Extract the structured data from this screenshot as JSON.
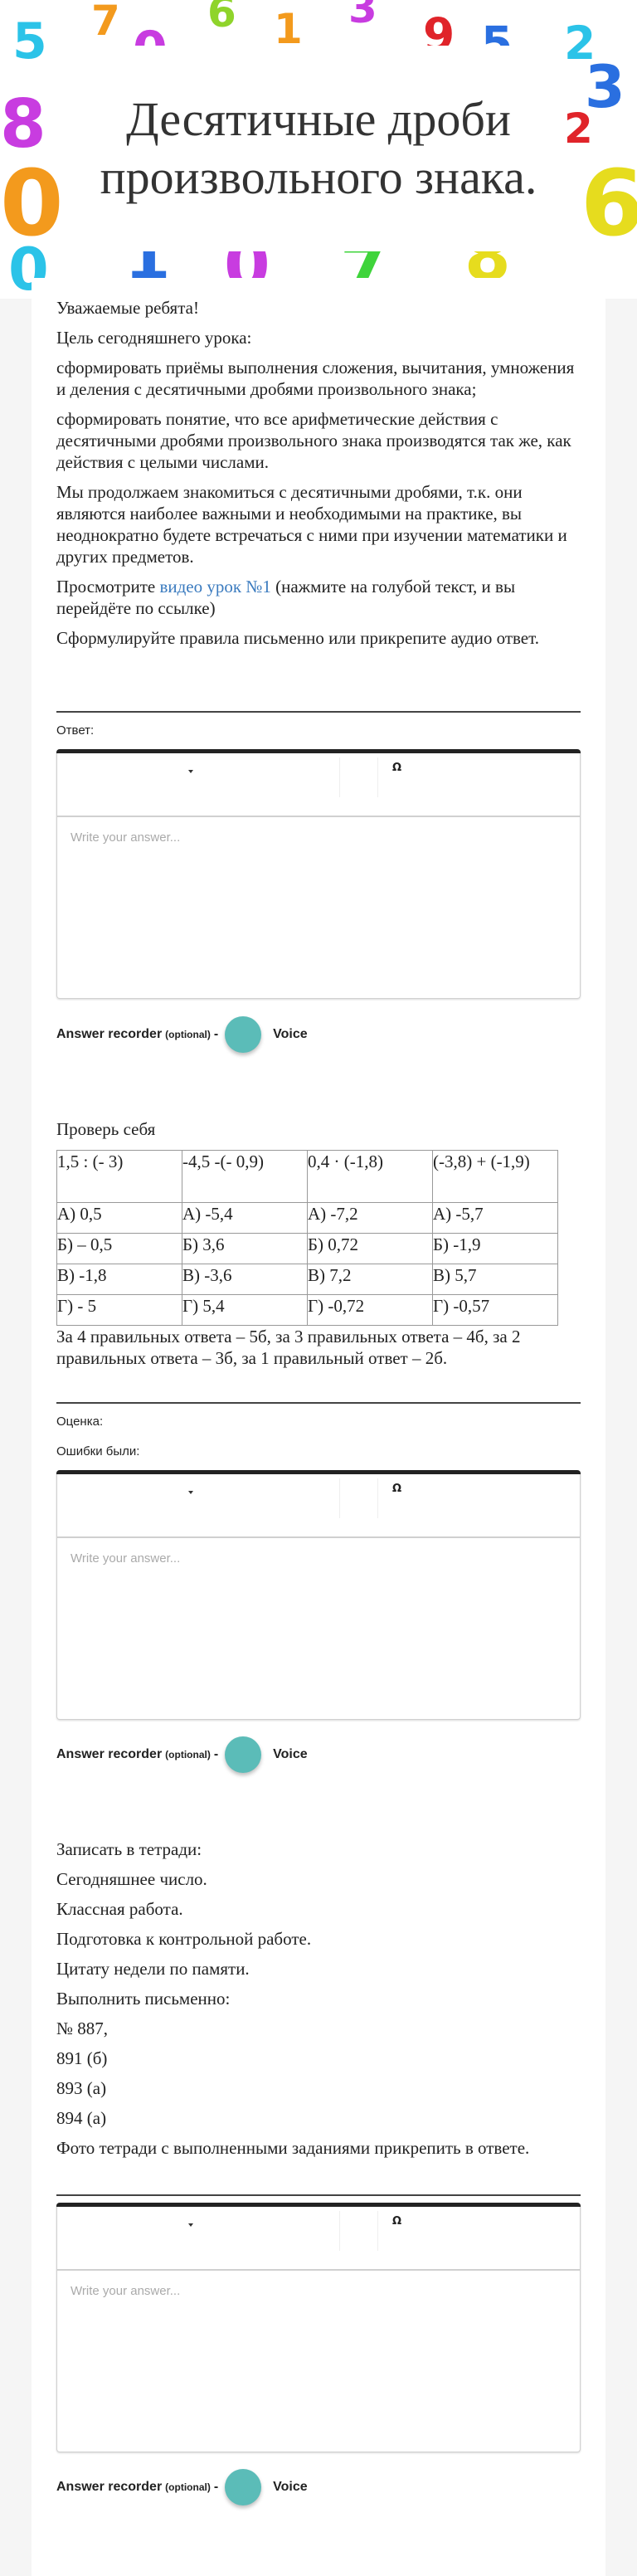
{
  "header": {
    "title": "Десятичные дроби произвольного знака."
  },
  "intro": {
    "paragraphs": [
      "Уважаемые ребята!",
      "Цель сегодняшнего урока:",
      "сформировать приёмы выполнения сложения, вычитания, умножения и деления с десятичными дробями произвольного знака;",
      "сформировать понятие, что все арифметические действия с десятичными дробями произвольного знака производятся так же, как действия с целыми числами.",
      "Мы продолжаем знакомиться с десятичными дробями, т.к. они являются наиболее важными и необходимыми на практике, вы неоднократно будете встречаться с ними при изучении математики и других предметов."
    ],
    "video_prefix": "Просмотрите ",
    "video_link": "видео урок №1",
    "video_suffix": " (нажмите на голубой текст, и вы перейдёте по ссылке)",
    "task": "Сформулируйте  правила письменно или прикрепите аудио ответ."
  },
  "q1": {
    "label": "Ответ:"
  },
  "editor": {
    "placeholder": "Write your answer...",
    "special_char": "Ω"
  },
  "recorder": {
    "label": "Answer recorder",
    "optional": "(optional)",
    "dash": "-",
    "voice": "Voice",
    "color": "#5bbcb8"
  },
  "check": {
    "title": "Проверь себя",
    "table": [
      [
        "1,5 : (- 3)",
        "-4,5 -(- 0,9)",
        "0,4 · (-1,8)",
        "(-3,8) + (-1,9)"
      ],
      [
        "А) 0,5",
        "А) -5,4",
        "А) -7,2",
        "А) -5,7"
      ],
      [
        "Б) – 0,5",
        "Б) 3,6",
        "Б) 0,72",
        "Б) -1,9"
      ],
      [
        "В) -1,8",
        "В) -3,6",
        "В) 7,2",
        "В) 5,7"
      ],
      [
        "Г) - 5",
        "Г) 5,4",
        "Г) -0,72",
        "Г) -0,57"
      ]
    ],
    "scoring": "За 4 правильных ответа – 5б, за 3 правильных ответа – 4б, за 2 правильных ответа – 3б, за 1 правильный ответ – 2б."
  },
  "q2": {
    "label_grade": "Оценка:",
    "label_errors": "Ошибки были:"
  },
  "homework": {
    "lines": [
      "Записать в тетради:",
      "Сегодняшнее число.",
      "Классная работа.",
      "Подготовка к контрольной работе.",
      "Цитату недели по памяти.",
      "Выполнить письменно:",
      "№ 887,",
      "891 (б)",
      "893 (а)",
      "894 (а)",
      "Фото тетради с выполненными заданиями прикрепить в ответе."
    ]
  }
}
